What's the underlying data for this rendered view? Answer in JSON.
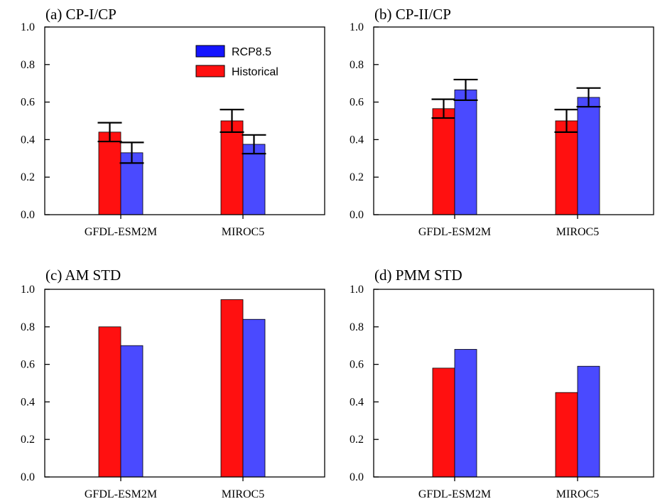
{
  "chart_data": [
    {
      "type": "bar",
      "title": "(a) CP-I/CP",
      "categories": [
        "GFDL-ESM2M",
        "MIROC5"
      ],
      "ylim": [
        0,
        1.0
      ],
      "yticks": [
        "0.0",
        "0.2",
        "0.4",
        "0.6",
        "0.8",
        "1.0"
      ],
      "series": [
        {
          "name": "Historical",
          "values": [
            0.44,
            0.5
          ],
          "errors": [
            0.05,
            0.06
          ]
        },
        {
          "name": "RCP8.5",
          "values": [
            0.33,
            0.375
          ],
          "errors": [
            0.055,
            0.05
          ]
        }
      ],
      "legend": {
        "position": "top-right",
        "entries": [
          "RCP8.5",
          "Historical"
        ]
      }
    },
    {
      "type": "bar",
      "title": "(b) CP-II/CP",
      "categories": [
        "GFDL-ESM2M",
        "MIROC5"
      ],
      "ylim": [
        0,
        1.0
      ],
      "yticks": [
        "0.0",
        "0.2",
        "0.4",
        "0.6",
        "0.8",
        "1.0"
      ],
      "series": [
        {
          "values": [
            0.565,
            0.5
          ],
          "errors": [
            0.05,
            0.06
          ]
        },
        {
          "values": [
            0.665,
            0.625
          ],
          "errors": [
            0.055,
            0.05
          ]
        }
      ]
    },
    {
      "type": "bar",
      "title": "(c) AM STD",
      "categories": [
        "GFDL-ESM2M",
        "MIROC5"
      ],
      "ylim": [
        0,
        1.0
      ],
      "yticks": [
        "0.0",
        "0.2",
        "0.4",
        "0.6",
        "0.8",
        "1.0"
      ],
      "series": [
        {
          "values": [
            0.8,
            0.945
          ]
        },
        {
          "values": [
            0.7,
            0.84
          ]
        }
      ]
    },
    {
      "type": "bar",
      "title": "(d) PMM STD",
      "categories": [
        "GFDL-ESM2M",
        "MIROC5"
      ],
      "ylim": [
        0,
        1.0
      ],
      "yticks": [
        "0.0",
        "0.2",
        "0.4",
        "0.6",
        "0.8",
        "1.0"
      ],
      "series": [
        {
          "values": [
            0.58,
            0.45
          ]
        },
        {
          "values": [
            0.68,
            0.59
          ]
        }
      ]
    }
  ],
  "colors": {
    "historical": "#ff1010",
    "rcp85": "#4a4aff",
    "legend_rcp85": "#1515ff"
  }
}
